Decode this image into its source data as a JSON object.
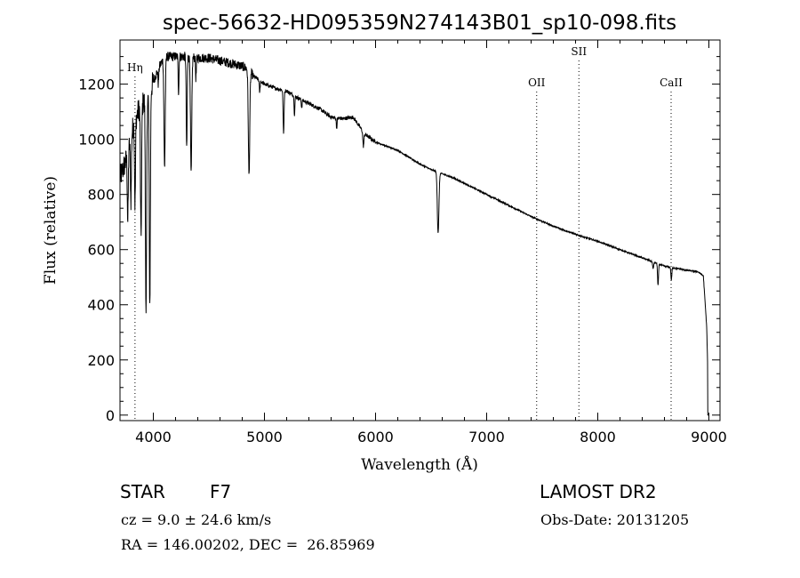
{
  "chart_data": {
    "type": "line",
    "title": "spec-56632-HD095359N274143B01_sp10-098.fits",
    "xlabel": "Wavelength (Å)",
    "ylabel": "Flux (relative)",
    "xlim": [
      3700,
      9100
    ],
    "ylim": [
      -20,
      1360
    ],
    "x_ticks": [
      4000,
      5000,
      6000,
      7000,
      8000,
      9000
    ],
    "y_ticks": [
      0,
      200,
      400,
      600,
      800,
      1000,
      1200
    ],
    "grid": false,
    "continuum": {
      "x": [
        3700,
        3760,
        3820,
        3880,
        3950,
        4000,
        4050,
        4100,
        4200,
        4300,
        4400,
        4500,
        4600,
        4700,
        4800,
        4850,
        4900,
        5000,
        5100,
        5200,
        5300,
        5400,
        5500,
        5600,
        5700,
        5800,
        5900,
        6000,
        6200,
        6400,
        6500,
        6600,
        6700,
        6800,
        7000,
        7200,
        7400,
        7600,
        7800,
        8000,
        8200,
        8400,
        8600,
        8800,
        8900,
        8950,
        8980,
        9000
      ],
      "flux": [
        860,
        930,
        1050,
        1120,
        1150,
        1210,
        1260,
        1300,
        1300,
        1300,
        1295,
        1295,
        1285,
        1275,
        1265,
        1255,
        1230,
        1200,
        1185,
        1175,
        1150,
        1130,
        1110,
        1080,
        1075,
        1080,
        1020,
        990,
        960,
        910,
        890,
        875,
        860,
        840,
        800,
        760,
        720,
        685,
        655,
        630,
        600,
        570,
        540,
        525,
        520,
        505,
        320,
        0
      ]
    },
    "absorption_lines": [
      {
        "x": 3770,
        "flux": 700,
        "width": 6
      },
      {
        "x": 3798,
        "flux": 780,
        "width": 6
      },
      {
        "x": 3835,
        "flux": 760,
        "width": 6
      },
      {
        "x": 3889,
        "flux": 640,
        "width": 7
      },
      {
        "x": 3934,
        "flux": 340,
        "width": 7
      },
      {
        "x": 3968,
        "flux": 400,
        "width": 7
      },
      {
        "x": 4045,
        "flux": 1200,
        "width": 5
      },
      {
        "x": 4101,
        "flux": 900,
        "width": 8
      },
      {
        "x": 4227,
        "flux": 1170,
        "width": 5
      },
      {
        "x": 4300,
        "flux": 960,
        "width": 6
      },
      {
        "x": 4340,
        "flux": 870,
        "width": 8
      },
      {
        "x": 4383,
        "flux": 1220,
        "width": 5
      },
      {
        "x": 4861,
        "flux": 870,
        "width": 9
      },
      {
        "x": 4957,
        "flux": 1170,
        "width": 5
      },
      {
        "x": 5172,
        "flux": 1020,
        "width": 6
      },
      {
        "x": 5270,
        "flux": 1090,
        "width": 5
      },
      {
        "x": 5335,
        "flux": 1115,
        "width": 5
      },
      {
        "x": 5650,
        "flux": 1040,
        "width": 5
      },
      {
        "x": 5890,
        "flux": 975,
        "width": 7
      },
      {
        "x": 6563,
        "flux": 660,
        "width": 10
      },
      {
        "x": 8498,
        "flux": 530,
        "width": 6
      },
      {
        "x": 8542,
        "flux": 470,
        "width": 6
      },
      {
        "x": 8662,
        "flux": 490,
        "width": 6
      }
    ],
    "line_markers": [
      {
        "label": "Hη",
        "x": 3835
      },
      {
        "label": "OII",
        "x": 7450
      },
      {
        "label": "SII",
        "x": 7830
      },
      {
        "label": "CaII",
        "x": 8660
      }
    ]
  },
  "info": {
    "object_type": "STAR",
    "spectral_class": "F7",
    "survey": "LAMOST DR2",
    "redshift": "cz = 9.0 ± 24.6 km/s",
    "obs_date": "Obs-Date: 20131205",
    "coords": "RA = 146.00202, DEC =  26.85969"
  }
}
